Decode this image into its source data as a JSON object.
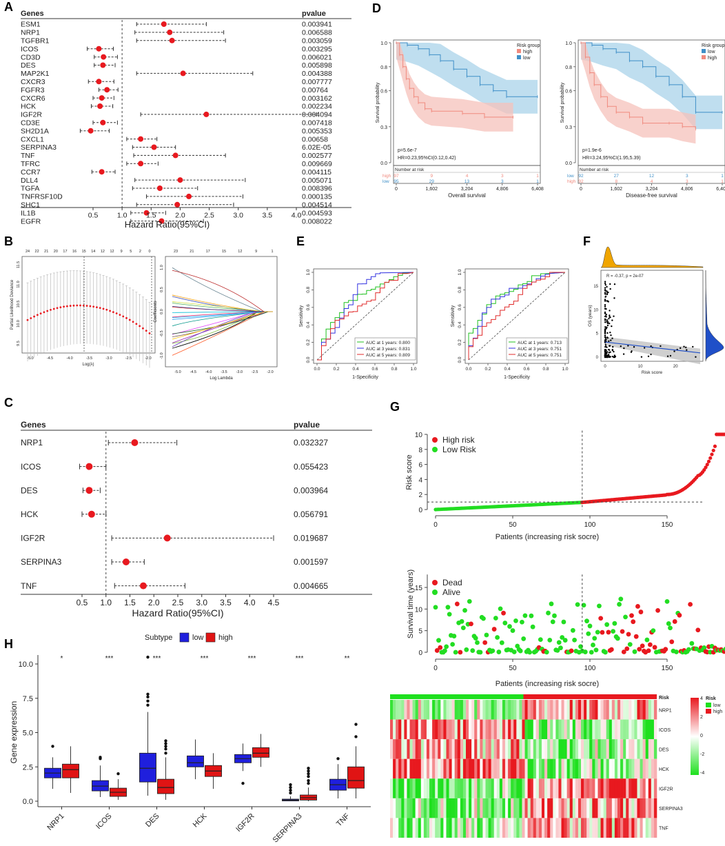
{
  "panels": {
    "A": "A",
    "B": "B",
    "C": "C",
    "D": "D",
    "E": "E",
    "F": "F",
    "G": "G",
    "H": "H"
  },
  "colors": {
    "dot": "#e8191f",
    "km_high": "#f08a7e",
    "km_low": "#3f8fc7",
    "km_high_band": "#f6c2bb",
    "km_low_band": "#a9d3ea",
    "roc_1y": "#1fc11f",
    "roc_3y": "#3030e0",
    "roc_5y": "#e02828",
    "risk_high": "#e8191f",
    "risk_low": "#22dd22",
    "box_low": "#1f1fdd",
    "box_high": "#e01414",
    "density_top": "#f0a500",
    "density_right": "#1f4fc8",
    "heat_red": "#e8191f",
    "heat_green": "#1ee01e"
  },
  "chart_data": [
    {
      "id": "A",
      "type": "forest",
      "header_genes": "Genes",
      "header_pvalue": "pvalue",
      "xlabel": "Hazard Ratio(95%CI)",
      "xticks": [
        "0.5",
        "1.0",
        "1.5",
        "2.0",
        "2.5",
        "3.0",
        "3.5",
        "4.0"
      ],
      "xlim": [
        0,
        4.7
      ],
      "rows": [
        {
          "gene": "ESM1",
          "hr": 1.72,
          "lo": 1.25,
          "hi": 2.45,
          "p": "0.003941"
        },
        {
          "gene": "NRP1",
          "hr": 1.82,
          "lo": 1.22,
          "hi": 2.75,
          "p": "0.006588"
        },
        {
          "gene": "TGFBR1",
          "hr": 1.86,
          "lo": 1.25,
          "hi": 2.78,
          "p": "0.003059"
        },
        {
          "gene": "ICOS",
          "hr": 0.6,
          "lo": 0.4,
          "hi": 0.85,
          "p": "0.003295"
        },
        {
          "gene": "CD3D",
          "hr": 0.68,
          "lo": 0.52,
          "hi": 0.92,
          "p": "0.006021"
        },
        {
          "gene": "DES",
          "hr": 0.67,
          "lo": 0.52,
          "hi": 0.88,
          "p": "0.005898"
        },
        {
          "gene": "MAP2K1",
          "hr": 2.05,
          "lo": 1.25,
          "hi": 3.25,
          "p": "0.004388"
        },
        {
          "gene": "CXCR3",
          "hr": 0.6,
          "lo": 0.42,
          "hi": 0.86,
          "p": "0.007777"
        },
        {
          "gene": "FGFR3",
          "hr": 0.74,
          "lo": 0.6,
          "hi": 0.93,
          "p": "0.00764"
        },
        {
          "gene": "CXCR6",
          "hr": 0.65,
          "lo": 0.5,
          "hi": 0.86,
          "p": "0.003162"
        },
        {
          "gene": "HCK",
          "hr": 0.62,
          "lo": 0.47,
          "hi": 0.84,
          "p": "0.002234"
        },
        {
          "gene": "IGF2R",
          "hr": 2.45,
          "lo": 1.32,
          "hi": 4.35,
          "p": "0.004094"
        },
        {
          "gene": "CD3E",
          "hr": 0.67,
          "lo": 0.5,
          "hi": 0.92,
          "p": "0.007418"
        },
        {
          "gene": "SH2D1A",
          "hr": 0.46,
          "lo": 0.28,
          "hi": 0.78,
          "p": "0.005353"
        },
        {
          "gene": "CXCL1",
          "hr": 1.32,
          "lo": 1.08,
          "hi": 1.6,
          "p": "0.00658"
        },
        {
          "gene": "SERPINA3",
          "hr": 1.55,
          "lo": 1.18,
          "hi": 1.92,
          "p": "6.02E-05"
        },
        {
          "gene": "TNF",
          "hr": 1.92,
          "lo": 1.2,
          "hi": 2.78,
          "p": "0.002577"
        },
        {
          "gene": "TFRC",
          "hr": 1.32,
          "lo": 1.08,
          "hi": 1.62,
          "p": "0.009669"
        },
        {
          "gene": "CCR7",
          "hr": 0.65,
          "lo": 0.48,
          "hi": 0.88,
          "p": "0.004115"
        },
        {
          "gene": "DLL4",
          "hr": 2.0,
          "lo": 1.22,
          "hi": 3.12,
          "p": "0.005071"
        },
        {
          "gene": "TGFA",
          "hr": 1.65,
          "lo": 1.18,
          "hi": 2.3,
          "p": "0.008396"
        },
        {
          "gene": "TNFRSF10D",
          "hr": 2.15,
          "lo": 1.42,
          "hi": 3.08,
          "p": "0.000135"
        },
        {
          "gene": "SHC1",
          "hr": 1.95,
          "lo": 1.25,
          "hi": 2.92,
          "p": "0.004514"
        },
        {
          "gene": "IL1B",
          "hr": 1.42,
          "lo": 1.15,
          "hi": 1.75,
          "p": "0.004593"
        },
        {
          "gene": "EGFR",
          "hr": 1.68,
          "lo": 1.15,
          "hi": 2.4,
          "p": "0.008022"
        }
      ]
    },
    {
      "id": "D1",
      "type": "km",
      "legend_title": "Risk group",
      "legend": [
        "high",
        "low"
      ],
      "xlabel": "Overall survival",
      "ylabel": "Survival probability",
      "xticks": [
        "0",
        "1,602",
        "3,204",
        "4,806",
        "6,408"
      ],
      "xlim": [
        0,
        6408
      ],
      "yticks": [
        "0.0",
        "0.3",
        "0.6",
        "0.8",
        "1.0"
      ],
      "pval": "p=5.6e-7",
      "hr": "HR=0.23,95%CI(0.12,0.42)",
      "risk_title": "Number at risk",
      "risk_rows": [
        {
          "label": "high",
          "counts": [
            "97",
            "9",
            "4",
            "3",
            "1"
          ]
        },
        {
          "label": "low",
          "counts": [
            "95",
            "29",
            "13",
            "3",
            "1"
          ]
        }
      ],
      "high_curve": [
        [
          0,
          1.0
        ],
        [
          150,
          0.9
        ],
        [
          300,
          0.8
        ],
        [
          450,
          0.7
        ],
        [
          600,
          0.62
        ],
        [
          800,
          0.55
        ],
        [
          1000,
          0.5
        ],
        [
          1300,
          0.45
        ],
        [
          1600,
          0.43
        ],
        [
          3000,
          0.41
        ],
        [
          4000,
          0.38
        ],
        [
          5300,
          0.38
        ]
      ],
      "low_curve": [
        [
          0,
          1.0
        ],
        [
          500,
          0.98
        ],
        [
          1000,
          0.95
        ],
        [
          1500,
          0.9
        ],
        [
          2000,
          0.85
        ],
        [
          2600,
          0.78
        ],
        [
          3200,
          0.72
        ],
        [
          3800,
          0.65
        ],
        [
          4400,
          0.6
        ],
        [
          5000,
          0.55
        ],
        [
          6408,
          0.55
        ]
      ]
    },
    {
      "id": "D2",
      "type": "km",
      "legend_title": "Risk group",
      "legend": [
        "low",
        "high"
      ],
      "xlabel": "Disease-free survival",
      "ylabel": "Survival probability",
      "xticks": [
        "0",
        "1,602",
        "3,204",
        "4,806",
        "6,408"
      ],
      "xlim": [
        0,
        6408
      ],
      "yticks": [
        "0.0",
        "0.3",
        "0.6",
        "0.8",
        "1.0"
      ],
      "pval": "p=1.9e-6",
      "hr": "HR=3.24,95%CI(1.95,5.39)",
      "risk_title": "Number at risk",
      "risk_rows": [
        {
          "label": "low",
          "counts": [
            "92",
            "27",
            "12",
            "3",
            "1"
          ]
        },
        {
          "label": "high",
          "counts": [
            "92",
            "8",
            "4",
            "3",
            "1"
          ]
        }
      ],
      "high_curve": [
        [
          0,
          1.0
        ],
        [
          200,
          0.88
        ],
        [
          400,
          0.75
        ],
        [
          600,
          0.65
        ],
        [
          900,
          0.55
        ],
        [
          1200,
          0.47
        ],
        [
          1600,
          0.42
        ],
        [
          2200,
          0.38
        ],
        [
          2800,
          0.33
        ],
        [
          4000,
          0.33
        ],
        [
          4600,
          0.3
        ],
        [
          5200,
          0.28
        ]
      ],
      "low_curve": [
        [
          0,
          1.0
        ],
        [
          500,
          0.98
        ],
        [
          1000,
          0.95
        ],
        [
          1600,
          0.92
        ],
        [
          2200,
          0.85
        ],
        [
          2800,
          0.8
        ],
        [
          3400,
          0.72
        ],
        [
          4000,
          0.65
        ],
        [
          4600,
          0.55
        ],
        [
          5200,
          0.42
        ],
        [
          6408,
          0.42
        ]
      ]
    },
    {
      "id": "B1",
      "type": "line",
      "xlabel": "Log(λ)",
      "ylabel": "Partial Likelihood Deviance",
      "top_ticks": [
        "24",
        "22",
        "21",
        "20",
        "17",
        "16",
        "15",
        "14",
        "12",
        "12",
        "9",
        "5",
        "2",
        "0"
      ],
      "xticks": [
        "-5.0",
        "-4.5",
        "-4.0",
        "-3.5",
        "-3.0",
        "-2.5",
        "-2.0"
      ],
      "yticks": [
        "9.5",
        "10.0",
        "10.5",
        "11.0",
        "11.5"
      ]
    },
    {
      "id": "B2",
      "type": "line",
      "xlabel": "Log Lambda",
      "ylabel": "Coefficients",
      "top_ticks": [
        "23",
        "21",
        "17",
        "15",
        "12",
        "9",
        "1"
      ],
      "xticks": [
        "-5.0",
        "-4.5",
        "-4.0",
        "-3.5",
        "-3.0",
        "-2.5",
        "-2.0"
      ],
      "yticks": [
        "-1.0",
        "-0.5",
        "0.0",
        "0.5",
        "1.0"
      ]
    },
    {
      "id": "E1",
      "type": "roc",
      "xlabel": "1-Specificity",
      "ylabel": "Sensitivity",
      "ticks": [
        "0.0",
        "0.2",
        "0.4",
        "0.6",
        "0.8",
        "1.0"
      ],
      "legend": [
        "AUC at 1 years: 0.800",
        "AUC at 3 years: 0.831",
        "AUC at 5 years: 0.809"
      ]
    },
    {
      "id": "E2",
      "type": "roc",
      "xlabel": "1-Specificity",
      "ylabel": "Sensitivity",
      "ticks": [
        "0.0",
        "0.2",
        "0.4",
        "0.6",
        "0.8",
        "1.0"
      ],
      "legend": [
        "AUC at 1 years: 0.713",
        "AUC at 3 years: 0.751",
        "AUC at 5 years: 0.751"
      ]
    },
    {
      "id": "F",
      "type": "scatter",
      "xlabel": "Risk score",
      "ylabel": "OS (years)",
      "annotation": "R = -0.37, p = 2e-07",
      "xticks": [
        "0",
        "10",
        "20"
      ],
      "yticks": [
        "0",
        "5",
        "10",
        "15"
      ]
    },
    {
      "id": "C",
      "type": "forest",
      "header_genes": "Genes",
      "header_pvalue": "pvalue",
      "xlabel": "Hazard Ratio(95%CI)",
      "xticks": [
        "0.5",
        "1.0",
        "1.5",
        "2.0",
        "2.5",
        "3.0",
        "3.5",
        "4.0",
        "4.5"
      ],
      "xlim": [
        0.5,
        4.6
      ],
      "rows": [
        {
          "gene": "NRP1",
          "hr": 1.6,
          "lo": 1.05,
          "hi": 2.48,
          "p": "0.032327"
        },
        {
          "gene": "ICOS",
          "hr": 0.65,
          "lo": 0.45,
          "hi": 1.0,
          "p": "0.055423"
        },
        {
          "gene": "DES",
          "hr": 0.65,
          "lo": 0.52,
          "hi": 0.88,
          "p": "0.003964"
        },
        {
          "gene": "HCK",
          "hr": 0.7,
          "lo": 0.5,
          "hi": 1.0,
          "p": "0.056791"
        },
        {
          "gene": "IGF2R",
          "hr": 2.28,
          "lo": 1.12,
          "hi": 4.5,
          "p": "0.019687"
        },
        {
          "gene": "SERPINA3",
          "hr": 1.42,
          "lo": 1.12,
          "hi": 1.8,
          "p": "0.001597"
        },
        {
          "gene": "TNF",
          "hr": 1.78,
          "lo": 1.18,
          "hi": 2.65,
          "p": "0.004665"
        }
      ]
    },
    {
      "id": "G1",
      "type": "scatter",
      "xlabel": "Patients (increasing risk socre)",
      "ylabel": "Risk score",
      "legend": [
        "High risk",
        "Low Risk"
      ],
      "xticks": [
        "0",
        "50",
        "100",
        "150"
      ],
      "yticks": [
        "0",
        "2",
        "4",
        "6",
        "8",
        "10"
      ],
      "cutoff_x": 95,
      "cutoff_y": 1
    },
    {
      "id": "G2",
      "type": "scatter",
      "xlabel": "Patients (increasing risk socre)",
      "ylabel": "Survival time (years)",
      "legend": [
        "Dead",
        "Alive"
      ],
      "xticks": [
        "0",
        "50",
        "100",
        "150"
      ],
      "yticks": [
        "0",
        "5",
        "10",
        "15"
      ],
      "cutoff_x": 95
    },
    {
      "id": "G3",
      "type": "heatmap",
      "rows": [
        "NRP1",
        "ICOS",
        "DES",
        "HCK",
        "IGF2R",
        "SERPINA3",
        "TNF"
      ],
      "top_label": "Risk",
      "scale_ticks": [
        "4",
        "2",
        "0",
        "-2",
        "-4"
      ],
      "legend_title": "Risk",
      "legend": [
        "low",
        "high"
      ],
      "n_low": 95,
      "n_total": 190
    },
    {
      "id": "H",
      "type": "box",
      "legend_title": "Subtype",
      "legend": [
        "low",
        "high"
      ],
      "ylabel": "Gene expression",
      "yticks": [
        "0.0",
        "2.5",
        "5.0",
        "7.5",
        "10.0"
      ],
      "ylim": [
        -0.3,
        11
      ],
      "categories": [
        "NRP1",
        "ICOS",
        "DES",
        "HCK",
        "IGF2R",
        "SERPINA3",
        "TNF"
      ],
      "signif": [
        "*",
        "***",
        "***",
        "***",
        "***",
        "***",
        "**"
      ],
      "low": [
        {
          "q1": 1.7,
          "med": 2.05,
          "q3": 2.4,
          "wlo": 0.9,
          "whi": 3.2,
          "out": [
            4.0
          ]
        },
        {
          "q1": 0.75,
          "med": 1.1,
          "q3": 1.5,
          "wlo": 0.3,
          "whi": 2.6,
          "out": [
            3.1,
            3.2
          ]
        },
        {
          "q1": 1.4,
          "med": 2.4,
          "q3": 3.5,
          "wlo": 0.4,
          "whi": 6.5,
          "out": [
            7.0,
            7.3,
            7.6,
            7.8,
            10.5
          ]
        },
        {
          "q1": 2.5,
          "med": 2.8,
          "q3": 3.3,
          "wlo": 1.6,
          "whi": 4.5,
          "out": []
        },
        {
          "q1": 2.8,
          "med": 3.1,
          "q3": 3.4,
          "wlo": 2.2,
          "whi": 4.2,
          "out": [
            1.3
          ]
        },
        {
          "q1": 0.02,
          "med": 0.08,
          "q3": 0.15,
          "wlo": 0.0,
          "whi": 0.35,
          "out": [
            0.6,
            0.8,
            1.0,
            1.2
          ]
        },
        {
          "q1": 0.8,
          "med": 1.2,
          "q3": 1.6,
          "wlo": 0.2,
          "whi": 2.7,
          "out": [
            3.1
          ]
        }
      ],
      "high": [
        {
          "q1": 1.7,
          "med": 2.3,
          "q3": 2.7,
          "wlo": 0.6,
          "whi": 4.0,
          "out": []
        },
        {
          "q1": 0.35,
          "med": 0.65,
          "q3": 0.95,
          "wlo": 0.1,
          "whi": 1.6,
          "out": [
            2.0
          ]
        },
        {
          "q1": 0.55,
          "med": 1.0,
          "q3": 1.6,
          "wlo": 0.1,
          "whi": 3.2,
          "out": [
            3.5,
            3.8,
            4.0,
            4.2,
            4.4
          ]
        },
        {
          "q1": 1.8,
          "med": 2.2,
          "q3": 2.6,
          "wlo": 0.9,
          "whi": 3.5,
          "out": []
        },
        {
          "q1": 3.2,
          "med": 3.5,
          "q3": 3.9,
          "wlo": 2.5,
          "whi": 4.9,
          "out": []
        },
        {
          "q1": 0.08,
          "med": 0.25,
          "q3": 0.45,
          "wlo": 0.0,
          "whi": 1.0,
          "out": [
            1.3,
            1.5,
            1.8,
            2.0,
            2.2,
            2.4
          ]
        },
        {
          "q1": 0.95,
          "med": 1.5,
          "q3": 2.5,
          "wlo": 0.2,
          "whi": 4.0,
          "out": [
            4.7,
            5.6
          ]
        }
      ]
    }
  ]
}
